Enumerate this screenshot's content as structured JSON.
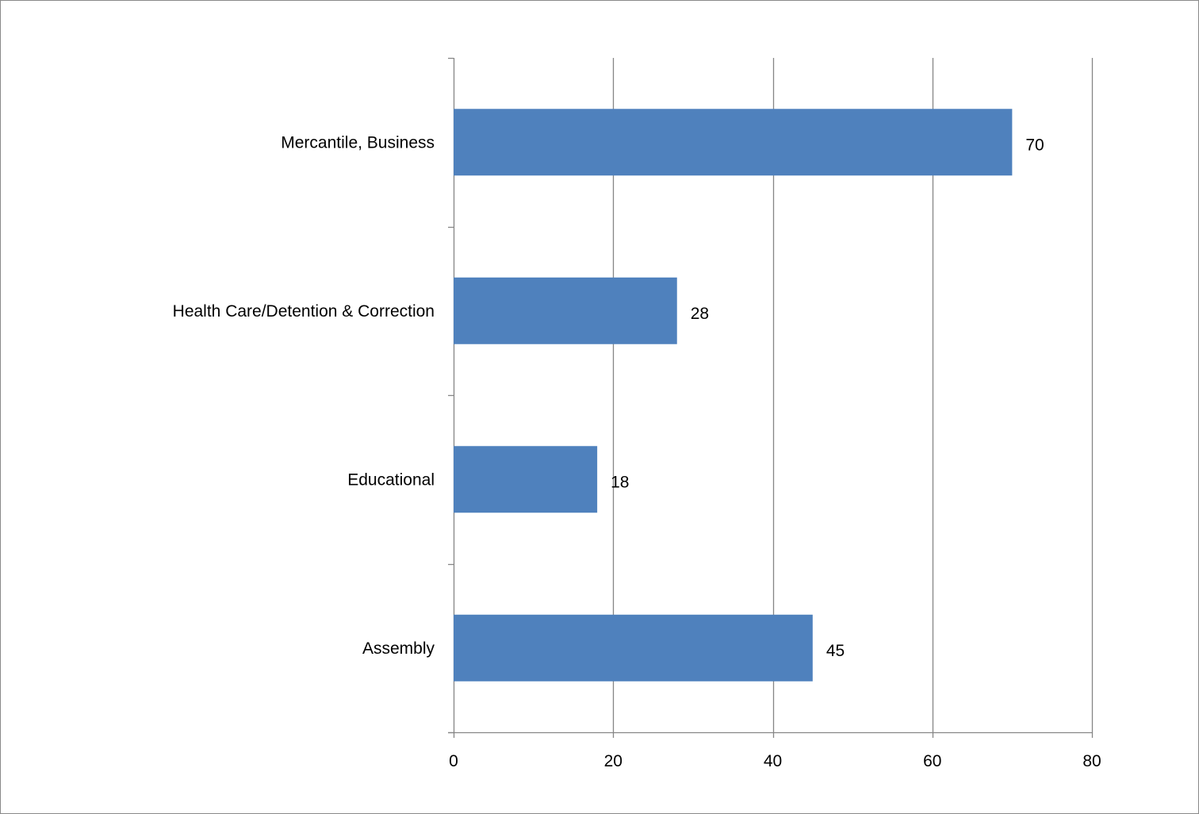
{
  "chart_data": {
    "type": "bar",
    "orientation": "horizontal",
    "categories": [
      "Mercantile, Business",
      "Health Care/Detention & Correction",
      "Educational",
      "Assembly"
    ],
    "values": [
      70,
      28,
      18,
      45
    ],
    "data_labels": [
      "70",
      "28",
      "18",
      "45"
    ],
    "xlim": [
      0,
      80
    ],
    "x_ticks": [
      0,
      20,
      40,
      60,
      80
    ],
    "x_tick_labels": [
      "0",
      "20",
      "40",
      "60",
      "80"
    ],
    "grid": "vertical major gridlines",
    "legend": "none",
    "bar_color": "#4f81bd",
    "gridline_color": "#868686"
  }
}
